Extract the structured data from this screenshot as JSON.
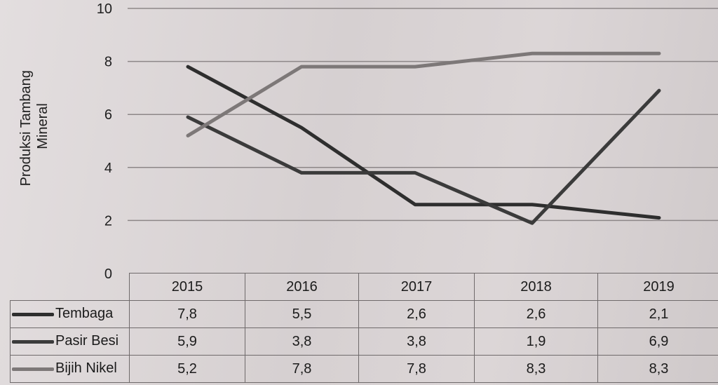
{
  "chart_data": {
    "type": "line",
    "categories": [
      "2015",
      "2016",
      "2017",
      "2018",
      "2019"
    ],
    "ylabel_lines": [
      "Produksi Tambang",
      "Mineral"
    ],
    "ylim": [
      0,
      10
    ],
    "yticks": [
      "0",
      "2",
      "4",
      "6",
      "8",
      "10"
    ],
    "grid": true,
    "legend_placement": "table-left",
    "series": [
      {
        "name": "Tembaga",
        "values": [
          "7,8",
          "5,5",
          "2,6",
          "2,6",
          "2,1"
        ],
        "color": "#2e2e2e"
      },
      {
        "name": "Pasir Besi",
        "values": [
          "5,9",
          "3,8",
          "3,8",
          "1,9",
          "6,9"
        ],
        "color": "#3b3b3b"
      },
      {
        "name": "Bijih Nikel",
        "values": [
          "5,2",
          "7,8",
          "7,8",
          "8,3",
          "8,3"
        ],
        "color": "#7d7878"
      }
    ]
  }
}
